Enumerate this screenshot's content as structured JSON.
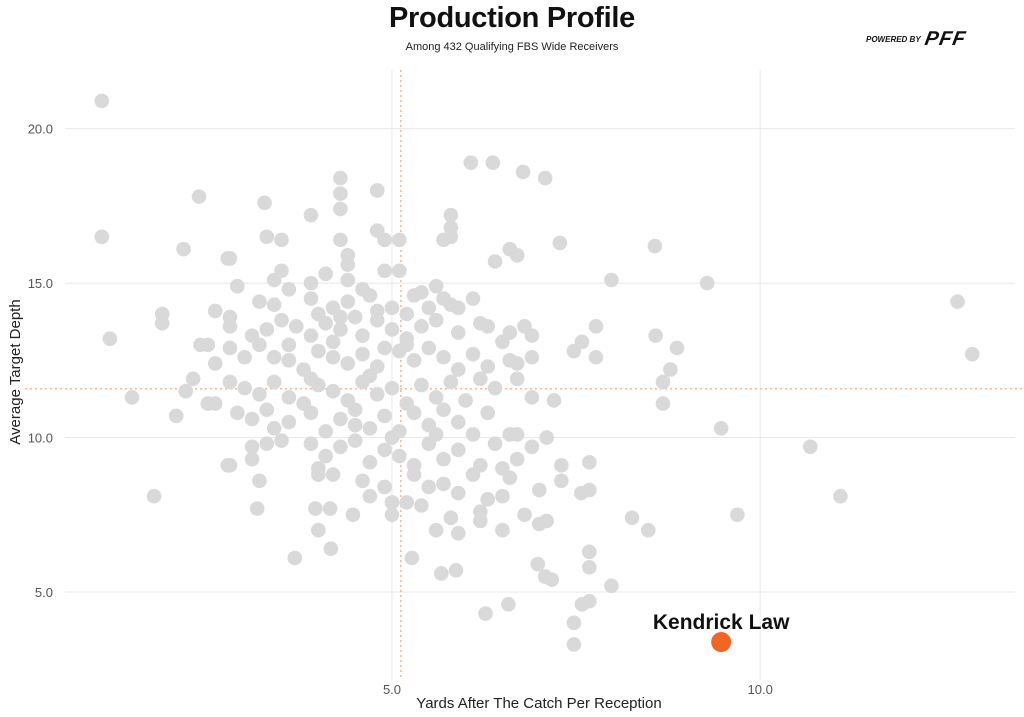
{
  "chart_data": {
    "type": "scatter",
    "title": "Production Profile",
    "subtitle": "Among 432 Qualifying FBS Wide Receivers",
    "brand": {
      "prefix": "POWERED BY",
      "name": "PFF"
    },
    "xlabel": "Yards After The Catch Per Reception",
    "ylabel": "Average Target Depth",
    "xlim": [
      0.56,
      13.46
    ],
    "ylim": [
      2.15,
      21.9
    ],
    "xticks": [
      {
        "value": 5,
        "label": "5.0"
      },
      {
        "value": 10,
        "label": "10.0"
      }
    ],
    "yticks": [
      {
        "value": 5,
        "label": "5.0"
      },
      {
        "value": 10,
        "label": "10.0"
      },
      {
        "value": 15,
        "label": "15.0"
      },
      {
        "value": 20,
        "label": "20.0"
      }
    ],
    "grid": true,
    "reference_lines": {
      "x": 5.12,
      "y": 11.58
    },
    "colors": {
      "points": "#d9d9d9",
      "highlight": "#f26522",
      "reference": "#f2b897",
      "grid": "#e8e8e8"
    },
    "highlight": {
      "name": "Kendrick Law",
      "x": 9.47,
      "y": 3.38
    },
    "points": [
      [
        1.06,
        20.9
      ],
      [
        1.06,
        16.5
      ],
      [
        1.17,
        13.2
      ],
      [
        1.47,
        11.3
      ],
      [
        1.77,
        8.1
      ],
      [
        1.88,
        14.0
      ],
      [
        1.88,
        13.7
      ],
      [
        2.07,
        10.7
      ],
      [
        2.17,
        16.1
      ],
      [
        2.38,
        17.8
      ],
      [
        2.77,
        15.8
      ],
      [
        2.77,
        9.1
      ],
      [
        3.27,
        17.6
      ],
      [
        3.68,
        6.1
      ],
      [
        6.07,
        18.9
      ],
      [
        6.37,
        18.9
      ],
      [
        6.78,
        18.6
      ],
      [
        7.08,
        18.4
      ],
      [
        7.28,
        16.3
      ],
      [
        7.98,
        15.1
      ],
      [
        8.57,
        16.2
      ],
      [
        9.28,
        15.0
      ],
      [
        8.58,
        13.3
      ],
      [
        8.87,
        12.9
      ],
      [
        8.78,
        12.2
      ],
      [
        8.68,
        11.8
      ],
      [
        8.68,
        11.1
      ],
      [
        9.47,
        10.3
      ],
      [
        10.68,
        9.7
      ],
      [
        11.09,
        8.1
      ],
      [
        9.69,
        7.5
      ],
      [
        8.26,
        7.4
      ],
      [
        8.48,
        7.0
      ],
      [
        12.68,
        14.4
      ],
      [
        12.88,
        12.7
      ],
      [
        7.77,
        13.6
      ],
      [
        7.77,
        12.6
      ],
      [
        7.58,
        13.1
      ],
      [
        7.47,
        12.8
      ],
      [
        7.68,
        9.2
      ],
      [
        7.68,
        8.3
      ],
      [
        7.57,
        8.2
      ],
      [
        7.98,
        5.2
      ],
      [
        7.68,
        6.3
      ],
      [
        7.68,
        5.8
      ],
      [
        7.68,
        4.7
      ],
      [
        7.58,
        4.6
      ],
      [
        7.47,
        4.0
      ],
      [
        7.47,
        3.3
      ],
      [
        7.08,
        5.5
      ],
      [
        7.17,
        5.4
      ],
      [
        6.98,
        5.9
      ],
      [
        6.27,
        4.3
      ],
      [
        6.58,
        4.6
      ],
      [
        5.67,
        5.6
      ],
      [
        5.87,
        5.7
      ],
      [
        5.27,
        6.1
      ],
      [
        4.17,
        6.4
      ],
      [
        3.96,
        7.7
      ],
      [
        4.16,
        7.7
      ],
      [
        4.47,
        7.5
      ],
      [
        3.17,
        7.7
      ],
      [
        3.9,
        17.2
      ],
      [
        4.3,
        17.4
      ],
      [
        4.3,
        17.9
      ],
      [
        4.3,
        18.4
      ],
      [
        4.8,
        18.0
      ],
      [
        5.8,
        17.2
      ],
      [
        5.8,
        16.8
      ],
      [
        5.8,
        16.5
      ],
      [
        3.3,
        16.5
      ],
      [
        3.5,
        16.4
      ],
      [
        4.3,
        16.4
      ],
      [
        4.9,
        16.4
      ],
      [
        4.8,
        16.7
      ],
      [
        5.1,
        16.4
      ],
      [
        5.7,
        16.4
      ],
      [
        6.6,
        16.1
      ],
      [
        6.7,
        15.9
      ],
      [
        6.4,
        15.7
      ],
      [
        2.8,
        15.8
      ],
      [
        3.4,
        15.1
      ],
      [
        3.5,
        15.4
      ],
      [
        3.9,
        15.0
      ],
      [
        4.1,
        15.3
      ],
      [
        4.4,
        15.9
      ],
      [
        4.4,
        15.6
      ],
      [
        4.9,
        15.4
      ],
      [
        5.1,
        15.4
      ],
      [
        4.4,
        15.1
      ],
      [
        4.6,
        14.8
      ],
      [
        5.3,
        14.6
      ],
      [
        5.4,
        14.7
      ],
      [
        5.6,
        14.9
      ],
      [
        5.7,
        14.5
      ],
      [
        6.1,
        14.5
      ],
      [
        5.8,
        14.3
      ],
      [
        2.9,
        14.9
      ],
      [
        2.6,
        14.1
      ],
      [
        3.2,
        14.4
      ],
      [
        3.4,
        14.3
      ],
      [
        3.6,
        14.8
      ],
      [
        3.9,
        14.5
      ],
      [
        4.2,
        14.2
      ],
      [
        4.4,
        14.4
      ],
      [
        4.7,
        14.6
      ],
      [
        4.8,
        14.1
      ],
      [
        5.0,
        14.2
      ],
      [
        5.2,
        14.0
      ],
      [
        5.5,
        14.2
      ],
      [
        5.9,
        14.2
      ],
      [
        4.3,
        13.9
      ],
      [
        4.0,
        14.0
      ],
      [
        2.8,
        13.9
      ],
      [
        2.8,
        13.6
      ],
      [
        3.1,
        13.3
      ],
      [
        3.3,
        13.5
      ],
      [
        3.5,
        13.8
      ],
      [
        3.7,
        13.6
      ],
      [
        3.9,
        13.3
      ],
      [
        4.1,
        13.7
      ],
      [
        4.3,
        13.5
      ],
      [
        4.6,
        13.3
      ],
      [
        4.8,
        13.8
      ],
      [
        5.0,
        13.5
      ],
      [
        5.2,
        13.2
      ],
      [
        5.4,
        13.6
      ],
      [
        5.6,
        13.8
      ],
      [
        5.9,
        13.4
      ],
      [
        6.2,
        13.7
      ],
      [
        6.3,
        13.6
      ],
      [
        6.6,
        13.4
      ],
      [
        6.9,
        13.3
      ],
      [
        6.8,
        13.6
      ],
      [
        4.5,
        13.9
      ],
      [
        3.6,
        13.0
      ],
      [
        4.2,
        13.1
      ],
      [
        2.4,
        13.0
      ],
      [
        2.5,
        13.0
      ],
      [
        2.6,
        12.4
      ],
      [
        2.8,
        12.9
      ],
      [
        3.0,
        12.6
      ],
      [
        3.2,
        13.0
      ],
      [
        3.4,
        12.6
      ],
      [
        3.6,
        12.5
      ],
      [
        3.8,
        12.2
      ],
      [
        4.0,
        12.8
      ],
      [
        4.2,
        12.6
      ],
      [
        4.4,
        12.4
      ],
      [
        4.6,
        12.7
      ],
      [
        4.8,
        12.3
      ],
      [
        5.1,
        12.8
      ],
      [
        5.3,
        12.5
      ],
      [
        5.5,
        12.9
      ],
      [
        5.7,
        12.6
      ],
      [
        5.9,
        12.2
      ],
      [
        6.1,
        12.7
      ],
      [
        6.3,
        12.3
      ],
      [
        6.5,
        13.1
      ],
      [
        6.6,
        12.5
      ],
      [
        6.9,
        12.6
      ],
      [
        6.7,
        12.4
      ],
      [
        4.9,
        12.9
      ],
      [
        5.2,
        13.0
      ],
      [
        2.3,
        11.9
      ],
      [
        2.2,
        11.5
      ],
      [
        2.5,
        11.1
      ],
      [
        2.6,
        11.1
      ],
      [
        2.8,
        11.8
      ],
      [
        3.0,
        11.6
      ],
      [
        3.2,
        11.4
      ],
      [
        3.4,
        11.8
      ],
      [
        3.6,
        11.3
      ],
      [
        3.8,
        11.1
      ],
      [
        4.0,
        11.7
      ],
      [
        4.2,
        11.5
      ],
      [
        4.4,
        11.2
      ],
      [
        4.6,
        11.8
      ],
      [
        4.8,
        11.4
      ],
      [
        5.0,
        11.6
      ],
      [
        5.2,
        11.1
      ],
      [
        5.4,
        11.7
      ],
      [
        5.6,
        11.3
      ],
      [
        5.8,
        11.8
      ],
      [
        6.0,
        11.2
      ],
      [
        6.2,
        11.9
      ],
      [
        6.4,
        11.6
      ],
      [
        6.7,
        11.9
      ],
      [
        6.9,
        11.3
      ],
      [
        7.2,
        11.2
      ],
      [
        4.7,
        12.0
      ],
      [
        3.9,
        11.9
      ],
      [
        2.9,
        10.8
      ],
      [
        3.1,
        10.6
      ],
      [
        3.3,
        10.9
      ],
      [
        3.6,
        10.5
      ],
      [
        3.9,
        10.8
      ],
      [
        4.1,
        10.2
      ],
      [
        4.3,
        10.6
      ],
      [
        4.5,
        10.9
      ],
      [
        4.7,
        10.3
      ],
      [
        4.9,
        10.7
      ],
      [
        5.1,
        10.2
      ],
      [
        5.3,
        10.8
      ],
      [
        5.5,
        10.4
      ],
      [
        5.7,
        10.9
      ],
      [
        5.9,
        10.5
      ],
      [
        6.1,
        10.1
      ],
      [
        6.3,
        10.8
      ],
      [
        6.6,
        10.1
      ],
      [
        6.7,
        10.1
      ],
      [
        7.1,
        10.0
      ],
      [
        3.4,
        10.3
      ],
      [
        4.5,
        10.4
      ],
      [
        5.0,
        10.0
      ],
      [
        5.6,
        10.1
      ],
      [
        2.8,
        9.1
      ],
      [
        3.1,
        9.3
      ],
      [
        3.1,
        9.7
      ],
      [
        3.3,
        9.8
      ],
      [
        3.5,
        9.9
      ],
      [
        3.9,
        9.8
      ],
      [
        4.1,
        9.4
      ],
      [
        4.3,
        9.7
      ],
      [
        4.5,
        9.9
      ],
      [
        4.7,
        9.2
      ],
      [
        4.9,
        9.6
      ],
      [
        5.1,
        9.4
      ],
      [
        5.3,
        9.1
      ],
      [
        5.5,
        9.8
      ],
      [
        5.7,
        9.3
      ],
      [
        5.9,
        9.6
      ],
      [
        6.2,
        9.1
      ],
      [
        6.4,
        9.8
      ],
      [
        6.7,
        9.3
      ],
      [
        6.9,
        9.7
      ],
      [
        7.3,
        9.1
      ],
      [
        4.0,
        9.0
      ],
      [
        6.5,
        9.0
      ],
      [
        3.2,
        8.6
      ],
      [
        4.0,
        8.8
      ],
      [
        4.2,
        8.8
      ],
      [
        4.6,
        8.6
      ],
      [
        4.7,
        8.1
      ],
      [
        4.9,
        8.4
      ],
      [
        5.3,
        8.8
      ],
      [
        5.5,
        8.4
      ],
      [
        5.7,
        8.5
      ],
      [
        5.9,
        8.2
      ],
      [
        6.1,
        8.8
      ],
      [
        6.3,
        8.0
      ],
      [
        6.5,
        8.1
      ],
      [
        6.6,
        8.7
      ],
      [
        7.0,
        8.3
      ],
      [
        7.3,
        8.6
      ],
      [
        5.0,
        7.9
      ],
      [
        5.2,
        7.9
      ],
      [
        4.0,
        7.0
      ],
      [
        5.0,
        7.5
      ],
      [
        5.6,
        7.0
      ],
      [
        5.8,
        7.4
      ],
      [
        5.9,
        6.9
      ],
      [
        6.2,
        7.3
      ],
      [
        6.5,
        7.0
      ],
      [
        6.8,
        7.5
      ],
      [
        7.0,
        7.2
      ],
      [
        7.1,
        7.3
      ],
      [
        5.4,
        7.8
      ],
      [
        6.2,
        7.6
      ]
    ]
  }
}
